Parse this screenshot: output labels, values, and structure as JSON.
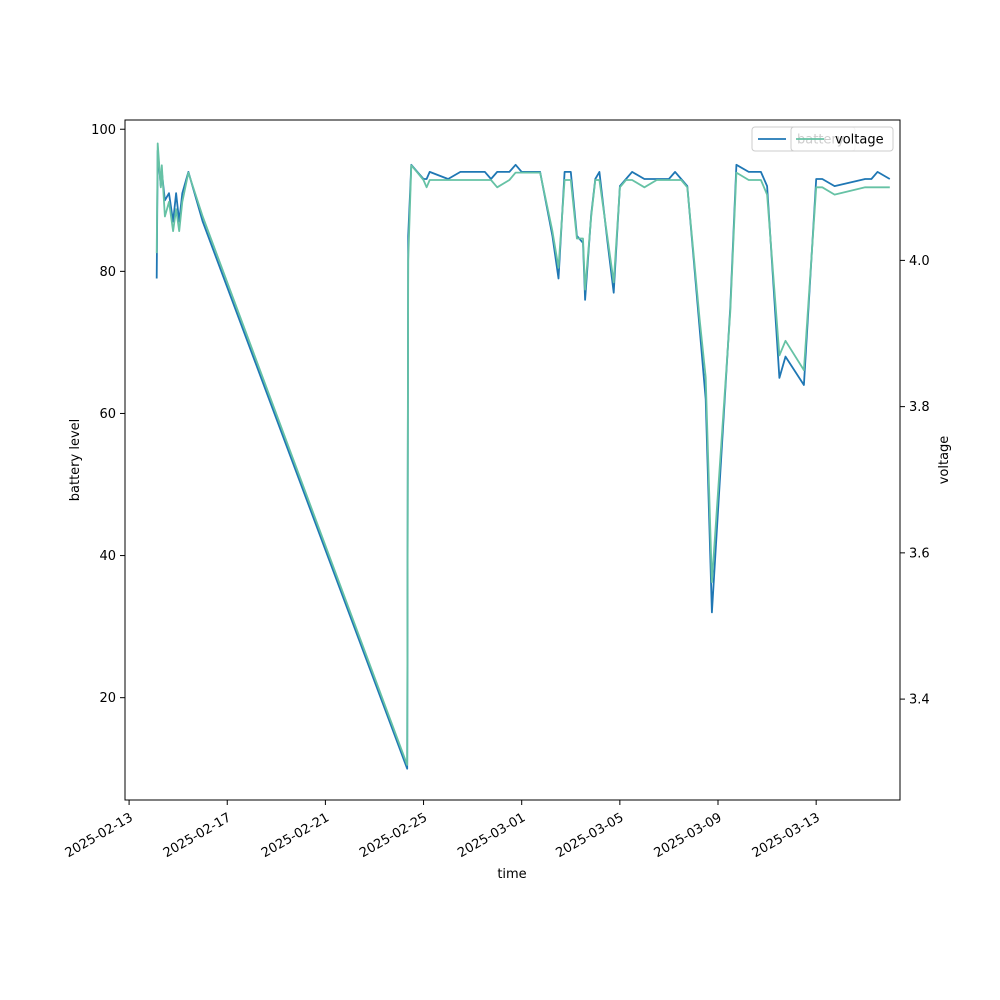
{
  "chart_data": {
    "type": "line",
    "title": "",
    "xlabel": "time",
    "ylabel_left": "battery level",
    "ylabel_right": "voltage",
    "x_ticks": [
      "2025-02-13",
      "2025-02-17",
      "2025-02-21",
      "2025-02-25",
      "2025-03-01",
      "2025-03-05",
      "2025-03-09",
      "2025-03-13"
    ],
    "y_left_ticks": [
      20,
      40,
      60,
      80,
      100
    ],
    "y_right_ticks": [
      "3.4",
      "3.6",
      "3.8",
      "4.0"
    ],
    "y_left_lim": [
      5.6,
      101.3
    ],
    "y_right_lim": [
      3.262,
      4.192
    ],
    "x_lim": [
      "2025-02-12T20:00",
      "2025-03-16T10:00"
    ],
    "grid": false,
    "legend_entries": [
      {
        "name": "battery",
        "color": "#1f77b4"
      },
      {
        "name": "voltage",
        "color": "#66c2a5"
      }
    ],
    "series": [
      {
        "name": "battery",
        "axis": "left",
        "color": "#1f77b4",
        "points": [
          [
            "2025-02-14T03:00",
            79
          ],
          [
            "2025-02-14T04:00",
            97
          ],
          [
            "2025-02-14T07:00",
            92
          ],
          [
            "2025-02-14T08:00",
            94
          ],
          [
            "2025-02-14T11:00",
            90
          ],
          [
            "2025-02-14T15:00",
            91
          ],
          [
            "2025-02-14T19:00",
            87
          ],
          [
            "2025-02-14T22:00",
            91
          ],
          [
            "2025-02-15T01:00",
            87
          ],
          [
            "2025-02-15T04:00",
            91
          ],
          [
            "2025-02-15T10:00",
            94
          ],
          [
            "2025-02-16T00:00",
            87
          ],
          [
            "2025-02-24T08:00",
            10
          ],
          [
            "2025-02-24T09:00",
            85
          ],
          [
            "2025-02-24T12:00",
            95
          ],
          [
            "2025-02-24T18:00",
            94
          ],
          [
            "2025-02-25T00:00",
            93
          ],
          [
            "2025-02-25T03:00",
            93
          ],
          [
            "2025-02-25T06:00",
            94
          ],
          [
            "2025-02-26T00:00",
            93
          ],
          [
            "2025-02-26T12:00",
            94
          ],
          [
            "2025-02-27T00:00",
            94
          ],
          [
            "2025-02-27T12:00",
            94
          ],
          [
            "2025-02-27T18:00",
            93
          ],
          [
            "2025-02-28T00:00",
            94
          ],
          [
            "2025-02-28T12:00",
            94
          ],
          [
            "2025-02-28T18:00",
            95
          ],
          [
            "2025-03-01T00:00",
            94
          ],
          [
            "2025-03-01T18:00",
            94
          ],
          [
            "2025-03-02T06:00",
            85
          ],
          [
            "2025-03-02T12:00",
            79
          ],
          [
            "2025-03-02T18:00",
            94
          ],
          [
            "2025-03-03T00:00",
            94
          ],
          [
            "2025-03-03T06:00",
            85
          ],
          [
            "2025-03-03T12:00",
            84
          ],
          [
            "2025-03-03T14:00",
            76
          ],
          [
            "2025-03-03T20:00",
            88
          ],
          [
            "2025-03-04T00:00",
            93
          ],
          [
            "2025-03-04T04:00",
            94
          ],
          [
            "2025-03-04T08:00",
            89
          ],
          [
            "2025-03-04T12:00",
            84
          ],
          [
            "2025-03-04T18:00",
            77
          ],
          [
            "2025-03-05T00:00",
            92
          ],
          [
            "2025-03-05T06:00",
            93
          ],
          [
            "2025-03-05T12:00",
            94
          ],
          [
            "2025-03-06T00:00",
            93
          ],
          [
            "2025-03-06T12:00",
            93
          ],
          [
            "2025-03-07T00:00",
            93
          ],
          [
            "2025-03-07T06:00",
            94
          ],
          [
            "2025-03-07T12:00",
            93
          ],
          [
            "2025-03-07T18:00",
            92
          ],
          [
            "2025-03-08T00:00",
            82
          ],
          [
            "2025-03-08T06:00",
            72
          ],
          [
            "2025-03-08T12:00",
            62
          ],
          [
            "2025-03-08T18:00",
            32
          ],
          [
            "2025-03-09T12:00",
            75
          ],
          [
            "2025-03-09T18:00",
            95
          ],
          [
            "2025-03-10T06:00",
            94
          ],
          [
            "2025-03-10T12:00",
            94
          ],
          [
            "2025-03-10T18:00",
            94
          ],
          [
            "2025-03-11T00:00",
            92
          ],
          [
            "2025-03-11T12:00",
            65
          ],
          [
            "2025-03-11T18:00",
            68
          ],
          [
            "2025-03-12T12:00",
            64
          ],
          [
            "2025-03-13T00:00",
            93
          ],
          [
            "2025-03-13T06:00",
            93
          ],
          [
            "2025-03-13T18:00",
            92
          ],
          [
            "2025-03-15T00:00",
            93
          ],
          [
            "2025-03-15T06:00",
            93
          ],
          [
            "2025-03-15T12:00",
            94
          ],
          [
            "2025-03-16T00:00",
            93
          ]
        ]
      },
      {
        "name": "voltage",
        "axis": "right",
        "color": "#66c2a5",
        "points": [
          [
            "2025-02-14T03:00",
            4.01
          ],
          [
            "2025-02-14T04:00",
            4.16
          ],
          [
            "2025-02-14T07:00",
            4.1
          ],
          [
            "2025-02-14T08:00",
            4.13
          ],
          [
            "2025-02-14T11:00",
            4.06
          ],
          [
            "2025-02-14T15:00",
            4.08
          ],
          [
            "2025-02-14T19:00",
            4.04
          ],
          [
            "2025-02-14T22:00",
            4.07
          ],
          [
            "2025-02-15T01:00",
            4.04
          ],
          [
            "2025-02-15T04:00",
            4.08
          ],
          [
            "2025-02-15T10:00",
            4.12
          ],
          [
            "2025-02-16T00:00",
            4.06
          ],
          [
            "2025-02-24T08:00",
            3.31
          ],
          [
            "2025-02-24T09:00",
            4.0
          ],
          [
            "2025-02-24T12:00",
            4.13
          ],
          [
            "2025-02-24T18:00",
            4.12
          ],
          [
            "2025-02-25T00:00",
            4.11
          ],
          [
            "2025-02-25T03:00",
            4.1
          ],
          [
            "2025-02-25T06:00",
            4.11
          ],
          [
            "2025-02-26T00:00",
            4.11
          ],
          [
            "2025-02-26T12:00",
            4.11
          ],
          [
            "2025-02-27T00:00",
            4.11
          ],
          [
            "2025-02-27T12:00",
            4.11
          ],
          [
            "2025-02-27T18:00",
            4.11
          ],
          [
            "2025-02-28T00:00",
            4.1
          ],
          [
            "2025-02-28T12:00",
            4.11
          ],
          [
            "2025-02-28T18:00",
            4.12
          ],
          [
            "2025-03-01T00:00",
            4.12
          ],
          [
            "2025-03-01T18:00",
            4.12
          ],
          [
            "2025-03-02T06:00",
            4.04
          ],
          [
            "2025-03-02T12:00",
            3.99
          ],
          [
            "2025-03-02T18:00",
            4.11
          ],
          [
            "2025-03-03T00:00",
            4.11
          ],
          [
            "2025-03-03T06:00",
            4.03
          ],
          [
            "2025-03-03T12:00",
            4.03
          ],
          [
            "2025-03-03T14:00",
            3.96
          ],
          [
            "2025-03-03T20:00",
            4.06
          ],
          [
            "2025-03-04T00:00",
            4.11
          ],
          [
            "2025-03-04T04:00",
            4.11
          ],
          [
            "2025-03-04T08:00",
            4.07
          ],
          [
            "2025-03-04T12:00",
            4.03
          ],
          [
            "2025-03-04T18:00",
            3.97
          ],
          [
            "2025-03-05T00:00",
            4.1
          ],
          [
            "2025-03-05T06:00",
            4.11
          ],
          [
            "2025-03-05T12:00",
            4.11
          ],
          [
            "2025-03-06T00:00",
            4.1
          ],
          [
            "2025-03-06T12:00",
            4.11
          ],
          [
            "2025-03-07T00:00",
            4.11
          ],
          [
            "2025-03-07T06:00",
            4.11
          ],
          [
            "2025-03-07T12:00",
            4.11
          ],
          [
            "2025-03-07T18:00",
            4.1
          ],
          [
            "2025-03-08T00:00",
            4.01
          ],
          [
            "2025-03-08T06:00",
            3.92
          ],
          [
            "2025-03-08T12:00",
            3.84
          ],
          [
            "2025-03-08T18:00",
            3.56
          ],
          [
            "2025-03-09T12:00",
            3.93
          ],
          [
            "2025-03-09T18:00",
            4.12
          ],
          [
            "2025-03-10T06:00",
            4.11
          ],
          [
            "2025-03-10T12:00",
            4.11
          ],
          [
            "2025-03-10T18:00",
            4.11
          ],
          [
            "2025-03-11T00:00",
            4.09
          ],
          [
            "2025-03-11T12:00",
            3.87
          ],
          [
            "2025-03-11T18:00",
            3.89
          ],
          [
            "2025-03-12T12:00",
            3.85
          ],
          [
            "2025-03-13T00:00",
            4.1
          ],
          [
            "2025-03-13T06:00",
            4.1
          ],
          [
            "2025-03-13T18:00",
            4.09
          ],
          [
            "2025-03-15T00:00",
            4.1
          ],
          [
            "2025-03-15T06:00",
            4.1
          ],
          [
            "2025-03-15T12:00",
            4.1
          ],
          [
            "2025-03-16T00:00",
            4.1
          ]
        ]
      }
    ]
  }
}
